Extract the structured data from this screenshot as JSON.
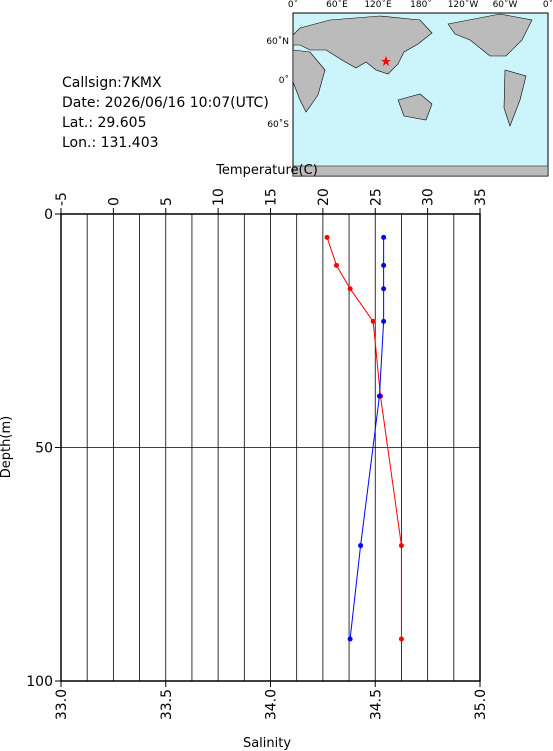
{
  "info": {
    "callsign": "Callsign:7KMX",
    "date": "Date:  2026/06/16 10:07(UTC)",
    "lat": "Lat.:  29.605",
    "lon": "Lon.:  131.403"
  },
  "map": {
    "lon_labels": [
      "0˚",
      "60˚E",
      "120˚E",
      "180˚",
      "120˚W",
      "60˚W",
      "0˚"
    ],
    "lat_labels": [
      "60˚N",
      "0˚",
      "60˚S"
    ]
  },
  "chart_data": {
    "type": "line",
    "xlabel": "Temperature(C)",
    "xlim": [
      -5,
      35
    ],
    "xticks": [
      -5,
      0,
      5,
      10,
      15,
      20,
      25,
      30,
      35
    ],
    "xgrid": [
      -2.5,
      0,
      2.5,
      5,
      7.5,
      10,
      12.5,
      15,
      17.5,
      20,
      22.5,
      25,
      27.5,
      30,
      32.5
    ],
    "x2label": "Salinity",
    "x2lim": [
      33,
      35
    ],
    "x2ticks": [
      {
        "value": 33,
        "label": "33.0"
      },
      {
        "value": 33.5,
        "label": "33.5"
      },
      {
        "value": 34,
        "label": "34.0"
      },
      {
        "value": 34.5,
        "label": "34.5"
      },
      {
        "value": 35,
        "label": "35.0"
      }
    ],
    "ylabel": "Depth(m)",
    "ylim": [
      0,
      100
    ],
    "yticks": [
      0,
      50,
      100
    ],
    "y_inverted": true,
    "y": [
      5,
      11,
      16,
      23,
      39,
      71,
      91
    ],
    "series": [
      {
        "color": "#ff0000",
        "axis": "x",
        "values": [
          20.4,
          21.3,
          22.6,
          24.8,
          25.5,
          27.5,
          27.5
        ]
      },
      {
        "color": "#0000ff",
        "axis": "x2",
        "values": [
          34.54,
          34.54,
          34.54,
          34.54,
          34.52,
          34.43,
          34.38
        ]
      }
    ]
  }
}
